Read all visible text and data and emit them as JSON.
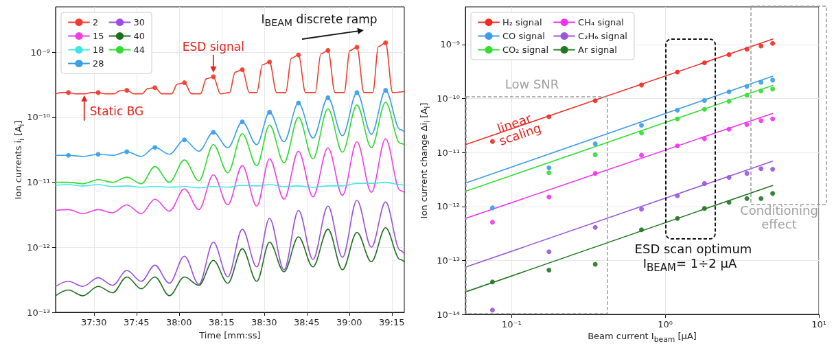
{
  "chart_data": [
    {
      "type": "line",
      "xlabel": "Time [mm:ss]",
      "ylabel": "Ion currents i$_{i}$ [A$_{i}$]",
      "x": [
        2236.5,
        2241,
        2246.1,
        2251.5,
        2256.6,
        2261.6,
        2266.7,
        2271.5,
        2276.6,
        2281.9,
        2287,
        2292.1,
        2297.2,
        2302.3,
        2307.4,
        2311.9,
        2317,
        2322.1,
        2327.2,
        2332.5,
        2337.6,
        2342.7,
        2347.8,
        2352.8,
        2357.9,
        2359.4
      ],
      "xlim": [
        2236.5,
        2359.4
      ],
      "xticks": [
        {
          "value": 2250,
          "label": "37:30"
        },
        {
          "value": 2265,
          "label": "37:45"
        },
        {
          "value": 2280,
          "label": "38:00"
        },
        {
          "value": 2295,
          "label": "38:15"
        },
        {
          "value": 2310,
          "label": "38:30"
        },
        {
          "value": 2325,
          "label": "38:45"
        },
        {
          "value": 2340,
          "label": "39:00"
        },
        {
          "value": 2355,
          "label": "39:15"
        }
      ],
      "ylim": [
        1e-13,
        5e-09
      ],
      "yticks": [
        {
          "value": 1e-13,
          "label": "10⁻¹³"
        },
        {
          "value": 1e-12,
          "label": "10⁻¹²"
        },
        {
          "value": 1e-11,
          "label": "10⁻¹¹"
        },
        {
          "value": 1e-10,
          "label": "10⁻¹⁰"
        },
        {
          "value": 1e-09,
          "label": "10⁻⁹"
        }
      ],
      "log": "y",
      "grid": true,
      "legend": "top left",
      "annotations": [
        {
          "text": "ESD signal",
          "x": 2292.1,
          "y": 4.2e-10
        },
        {
          "text": "Static BG",
          "x": 2246.6,
          "y": 2.35e-10
        },
        "I$_{BEAM}$ discrete ramp"
      ],
      "series": [
        {
          "name": "2",
          "color": "#ef3b2c",
          "x": [
            2236.5,
            2238.5,
            2241,
            2243.5,
            2247,
            2249,
            2251.5,
            2254,
            2257.1,
            2259.1,
            2261.6,
            2264.1,
            2267,
            2269,
            2271.5,
            2274,
            2277.4,
            2279.4,
            2281.9,
            2284.4,
            2287.6,
            2289.6,
            2292.1,
            2294.6,
            2297.8,
            2299.8,
            2302.3,
            2304.8,
            2307.4,
            2309.4,
            2311.9,
            2314.4,
            2317.6,
            2319.6,
            2322.1,
            2324.6,
            2328,
            2330,
            2332.5,
            2335,
            2338.2,
            2340.2,
            2342.7,
            2345.2,
            2348.3,
            2350.3,
            2352.8,
            2355.3,
            2359.4
          ],
          "values": [
            2.3e-10,
            2.4e-10,
            2.4e-10,
            2.3e-10,
            2.3e-10,
            2.4e-10,
            2.4e-10,
            2.3e-10,
            2.3e-10,
            2.55e-10,
            2.6e-10,
            2.3e-10,
            2.3e-10,
            2.77e-10,
            2.85e-10,
            2.3e-10,
            2.3e-10,
            3.24e-10,
            3.4e-10,
            2.3e-10,
            2.3e-10,
            3.9e-10,
            4.2e-10,
            2.3e-10,
            2.4e-10,
            4.95e-10,
            5.4e-10,
            2.4e-10,
            2.4e-10,
            6.4e-10,
            7.1e-10,
            2.4e-10,
            2.4e-10,
            8.1e-10,
            9.1e-10,
            2.4e-10,
            2.4e-10,
            9.5e-10,
            1.07e-09,
            2.4e-10,
            2.4e-10,
            1.06e-09,
            1.2e-09,
            2.4e-10,
            2.4e-10,
            1.23e-09,
            1.4e-09,
            2.4e-10,
            2.5e-10
          ]
        },
        {
          "name": "15",
          "color": "#ee3fe6",
          "values": [
            3.7e-12,
            3.8e-12,
            3.3e-12,
            3.8e-12,
            3.4e-12,
            4.5e-12,
            3.3e-12,
            5.5e-12,
            3.6e-12,
            7.9e-12,
            3.8e-12,
            1.3e-11,
            4.5e-12,
            1.8e-11,
            4.3e-12,
            2.3e-11,
            5.5e-12,
            3e-11,
            6e-12,
            3.4e-11,
            6.3e-12,
            4.2e-11,
            7e-12,
            4.7e-11,
            7.5e-12,
            7e-12
          ]
        },
        {
          "name": "18",
          "color": "#3de6e6",
          "values": [
            9e-12,
            9.2e-12,
            8.8e-12,
            9.2e-12,
            8.6e-12,
            8.8e-12,
            8.4e-12,
            8.6e-12,
            8.4e-12,
            8.6e-12,
            8.2e-12,
            8.6e-12,
            8.4e-12,
            9e-12,
            8.8e-12,
            9.2e-12,
            8.6e-12,
            8.8e-12,
            8.4e-12,
            8.8e-12,
            8.8e-12,
            9.6e-12,
            9.6e-12,
            1e-11,
            9.2e-12,
            9e-12
          ]
        },
        {
          "name": "28",
          "color": "#3a9ee8",
          "values": [
            2.6e-11,
            2.6e-11,
            2.5e-11,
            2.7e-11,
            2.6e-11,
            2.95e-11,
            2.5e-11,
            3.45e-11,
            2.7e-11,
            4.5e-11,
            3e-11,
            5.9e-11,
            3.4e-11,
            8.5e-11,
            3.8e-11,
            1.2e-10,
            4.2e-11,
            1.66e-10,
            4.8e-11,
            2e-10,
            5.2e-11,
            2.4e-10,
            5.5e-11,
            2.6e-10,
            6.5e-11,
            6e-11
          ]
        },
        {
          "name": "30",
          "color": "#9a4fe0",
          "values": [
            2.5e-13,
            3e-13,
            2.5e-13,
            3.4e-13,
            2.6e-13,
            4.4e-13,
            3e-13,
            5.3e-13,
            2.8e-13,
            7.3e-13,
            2.7e-13,
            1.2e-12,
            3.5e-13,
            1.9e-12,
            5e-13,
            2.8e-12,
            4.5e-13,
            3.7e-12,
            6.5e-13,
            4.3e-12,
            7e-13,
            5.3e-12,
            1e-12,
            5e-12,
            9e-13,
            8e-13
          ]
        },
        {
          "name": "40",
          "color": "#1f6e1f",
          "values": [
            1.8e-13,
            2.2e-13,
            1.8e-13,
            2.5e-13,
            2e-13,
            3.5e-13,
            2.3e-13,
            3.5e-13,
            1.8e-13,
            3.5e-13,
            2.6e-13,
            6.3e-13,
            2.8e-13,
            9.5e-13,
            3e-13,
            1.2e-12,
            4.2e-13,
            1.45e-12,
            5e-13,
            1.9e-12,
            4.5e-13,
            1.7e-12,
            6e-13,
            2e-12,
            6.5e-13,
            6e-13
          ]
        },
        {
          "name": "44",
          "color": "#2fdc2f",
          "values": [
            1e-11,
            1e-11,
            9.5e-12,
            1.1e-11,
            1e-11,
            1.2e-11,
            9.5e-12,
            1.75e-11,
            1e-11,
            2.2e-11,
            1.05e-11,
            3.8e-11,
            1.4e-11,
            5.6e-11,
            1.8e-11,
            7.6e-11,
            2e-11,
            1e-10,
            2.3e-11,
            1.35e-10,
            2.9e-11,
            1.55e-10,
            3.4e-11,
            1.7e-10,
            4e-11,
            3.8e-11
          ]
        },
        {
          "type": "scatter",
          "color": "#ef3b2c",
          "x": [
            2241,
            2251.5,
            2261.6,
            2271.5,
            2281.9,
            2292.1,
            2302.3,
            2311.9,
            2322.1,
            2332.5,
            2342.7,
            2352.8
          ],
          "values": [
            2.4e-10,
            2.4e-10,
            2.6e-10,
            2.85e-10,
            3.4e-10,
            4.2e-10,
            5.4e-10,
            7.1e-10,
            9.1e-10,
            1.07e-09,
            1.2e-09,
            1.4e-09
          ]
        },
        {
          "type": "scatter",
          "color": "#3a9ee8",
          "x": [
            2241,
            2251.5,
            2261.6,
            2271.5,
            2281.9,
            2292.1,
            2302.3,
            2311.9,
            2322.1,
            2332.5,
            2342.7,
            2352.8
          ],
          "values": [
            2.6e-11,
            2.7e-11,
            2.95e-11,
            3.45e-11,
            4.5e-11,
            5.9e-11,
            8.5e-11,
            1.2e-10,
            1.66e-10,
            2e-10,
            2.4e-10,
            2.6e-10
          ]
        }
      ]
    },
    {
      "type": "scatter",
      "xlabel": "Beam current I$_{beam}$ [μA]",
      "ylabel": "Ion current change Δi$_{i}$ [A$_{i}$]",
      "x": [
        0.075,
        0.175,
        0.35,
        0.7,
        1.2,
        1.8,
        2.6,
        3.4,
        4.2,
        5.0
      ],
      "xlim": [
        0.05,
        10
      ],
      "xticks": [
        {
          "value": 0.1,
          "label": "10⁻¹"
        },
        {
          "value": 1,
          "label": "10⁰"
        },
        {
          "value": 10,
          "label": "10¹"
        }
      ],
      "ylim": [
        1e-14,
        5e-09
      ],
      "yticks": [
        {
          "value": 1e-14,
          "label": "10⁻¹⁴"
        },
        {
          "value": 1e-13,
          "label": "10⁻¹³"
        },
        {
          "value": 1e-12,
          "label": "10⁻¹²"
        },
        {
          "value": 1e-11,
          "label": "10⁻¹¹"
        },
        {
          "value": 1e-10,
          "label": "10⁻¹⁰"
        },
        {
          "value": 1e-09,
          "label": "10⁻⁹"
        }
      ],
      "log": "xy",
      "grid": true,
      "legend": "top left",
      "annotations": [
        {
          "text": "linear scaling",
          "x": 0.11,
          "y": 2.8e-11
        },
        "Low SNR",
        "Conditioning effect",
        "ESD scan optimum",
        "I$_{BEAM}$= 1÷2 μA"
      ],
      "series": [
        {
          "name": "H₂ signal",
          "type": "line",
          "color": "#ee2c24",
          "x": [
            0.05,
            5
          ],
          "values": [
            1.4e-11,
            1.26e-09
          ]
        },
        {
          "name": "CO signal",
          "type": "line",
          "color": "#3c9ce8",
          "x": [
            0.05,
            5
          ],
          "values": [
            2.7e-12,
            2.6e-10
          ]
        },
        {
          "name": "CO₂ signal",
          "type": "line",
          "color": "#33dd33",
          "x": [
            0.05,
            5
          ],
          "values": [
            1.9e-12,
            1.75e-10
          ]
        },
        {
          "name": "CH₄ signal",
          "type": "line",
          "color": "#ee33ee",
          "x": [
            0.05,
            5
          ],
          "values": [
            6e-13,
            5.3e-11
          ]
        },
        {
          "name": "C₂H₆ signal",
          "type": "line",
          "color": "#9955dd",
          "x": [
            0.05,
            5
          ],
          "values": [
            7.5e-14,
            6.9e-12
          ]
        },
        {
          "name": "Ar signal",
          "type": "line",
          "color": "#227722",
          "x": [
            0.05,
            5
          ],
          "values": [
            2.6e-14,
            2.45e-12
          ]
        },
        {
          "color": "#ee2c24",
          "values": [
            1.6e-11,
            4.6e-11,
            9.1e-11,
            1.78e-10,
            3.1e-10,
            4.6e-10,
            6.5e-10,
            8.2e-10,
            9.4e-10,
            1.05e-09
          ]
        },
        {
          "color": "#3c9ce8",
          "values": [
            9.4e-13,
            5.2e-12,
            1.45e-11,
            3.2e-11,
            6.1e-11,
            9.2e-11,
            1.33e-10,
            1.68e-10,
            2e-10,
            2.2e-10
          ]
        },
        {
          "color": "#33dd33",
          "values": [
            null,
            4.2e-12,
            9.1e-12,
            2.3e-11,
            4.2e-11,
            6.3e-11,
            8.9e-11,
            1.15e-10,
            1.38e-10,
            1.5e-10
          ]
        },
        {
          "color": "#ee33ee",
          "values": [
            5.1e-13,
            1.5e-12,
            4.1e-12,
            8.9e-12,
            1.33e-11,
            1.8e-11,
            2.7e-11,
            3.3e-11,
            3.9e-11,
            4.2e-11
          ]
        },
        {
          "color": "#9955dd",
          "values": [
            1.2e-14,
            1.45e-13,
            4.1e-13,
            8.9e-13,
            1.58e-12,
            2.66e-12,
            3.45e-12,
            4.1e-12,
            5e-12,
            4.9e-12
          ]
        },
        {
          "color": "#227722",
          "values": [
            4e-14,
            6.6e-14,
            8.5e-14,
            3.7e-13,
            6e-13,
            9.2e-13,
            1.19e-12,
            1.4e-12,
            1.4e-12,
            1.74e-12
          ]
        }
      ]
    }
  ]
}
